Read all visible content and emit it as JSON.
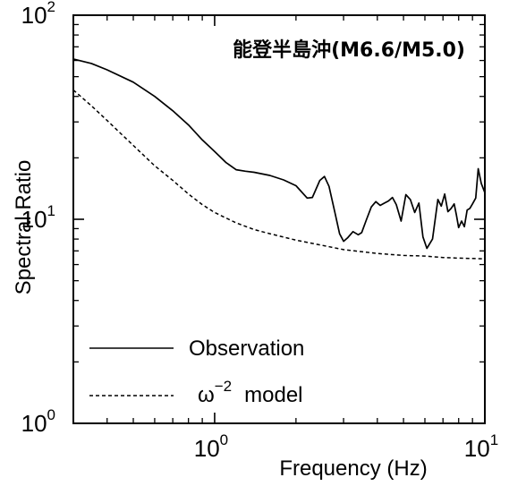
{
  "chart_data": {
    "type": "line",
    "xlabel": "Frequency (Hz)",
    "ylabel": "Spectral Ratio",
    "x_scale": "log",
    "y_scale": "log",
    "xlim": [
      0.3,
      10
    ],
    "ylim": [
      1,
      100
    ],
    "x_ticks": [
      {
        "value": 1,
        "base": "10",
        "exp": "0"
      },
      {
        "value": 10,
        "base": "10",
        "exp": "1"
      }
    ],
    "y_ticks": [
      {
        "value": 1,
        "base": "10",
        "exp": "0"
      },
      {
        "value": 10,
        "base": "10",
        "exp": "1"
      },
      {
        "value": 100,
        "base": "10",
        "exp": "2"
      }
    ],
    "annotation": "能登半島沖(M6.6/M5.0)",
    "legend_position": "lower-left",
    "series": [
      {
        "name": "Observation",
        "style": "solid",
        "points": [
          [
            0.3,
            61
          ],
          [
            0.35,
            58
          ],
          [
            0.4,
            54
          ],
          [
            0.5,
            47
          ],
          [
            0.6,
            40
          ],
          [
            0.7,
            34
          ],
          [
            0.8,
            29
          ],
          [
            0.9,
            24.5
          ],
          [
            1.0,
            21.5
          ],
          [
            1.1,
            19
          ],
          [
            1.2,
            17.5
          ],
          [
            1.3,
            17.2
          ],
          [
            1.4,
            17
          ],
          [
            1.6,
            16.4
          ],
          [
            1.8,
            15.6
          ],
          [
            2.0,
            14.6
          ],
          [
            2.2,
            12.7
          ],
          [
            2.3,
            12.8
          ],
          [
            2.45,
            15.5
          ],
          [
            2.55,
            16.2
          ],
          [
            2.65,
            14.5
          ],
          [
            2.8,
            10.5
          ],
          [
            2.9,
            8.5
          ],
          [
            3.0,
            7.8
          ],
          [
            3.1,
            8.1
          ],
          [
            3.25,
            8.7
          ],
          [
            3.4,
            8.4
          ],
          [
            3.5,
            8.6
          ],
          [
            3.65,
            10
          ],
          [
            3.8,
            11.5
          ],
          [
            3.95,
            12.2
          ],
          [
            4.1,
            11.7
          ],
          [
            4.25,
            12
          ],
          [
            4.4,
            12.3
          ],
          [
            4.55,
            12.8
          ],
          [
            4.7,
            11.8
          ],
          [
            4.9,
            9.8
          ],
          [
            5.1,
            13.2
          ],
          [
            5.3,
            12.5
          ],
          [
            5.5,
            10.8
          ],
          [
            5.7,
            12
          ],
          [
            5.9,
            8.2
          ],
          [
            6.1,
            7.2
          ],
          [
            6.4,
            8
          ],
          [
            6.7,
            12.5
          ],
          [
            6.9,
            11.6
          ],
          [
            7.1,
            13.3
          ],
          [
            7.3,
            10.9
          ],
          [
            7.5,
            11.3
          ],
          [
            7.7,
            11.9
          ],
          [
            7.85,
            10.5
          ],
          [
            8.0,
            9.1
          ],
          [
            8.2,
            9.8
          ],
          [
            8.4,
            9.2
          ],
          [
            8.6,
            11.1
          ],
          [
            8.8,
            11.3
          ],
          [
            9.0,
            11.9
          ],
          [
            9.25,
            12.7
          ],
          [
            9.45,
            17.7
          ],
          [
            9.7,
            15
          ],
          [
            10.0,
            13.5
          ]
        ]
      },
      {
        "name": "model",
        "legend_prefix": "ω",
        "legend_exponent": "−2",
        "style": "dashed",
        "points": [
          [
            0.3,
            43
          ],
          [
            0.35,
            36
          ],
          [
            0.4,
            30.5
          ],
          [
            0.5,
            23
          ],
          [
            0.6,
            18.3
          ],
          [
            0.7,
            15.5
          ],
          [
            0.8,
            13.3
          ],
          [
            0.9,
            11.8
          ],
          [
            1.0,
            10.8
          ],
          [
            1.2,
            9.6
          ],
          [
            1.4,
            8.9
          ],
          [
            1.6,
            8.5
          ],
          [
            2.0,
            7.9
          ],
          [
            2.5,
            7.45
          ],
          [
            3.0,
            7.1
          ],
          [
            4.0,
            6.8
          ],
          [
            5.0,
            6.65
          ],
          [
            6.0,
            6.6
          ],
          [
            7.0,
            6.5
          ],
          [
            8.0,
            6.45
          ],
          [
            10.0,
            6.4
          ]
        ]
      }
    ]
  }
}
